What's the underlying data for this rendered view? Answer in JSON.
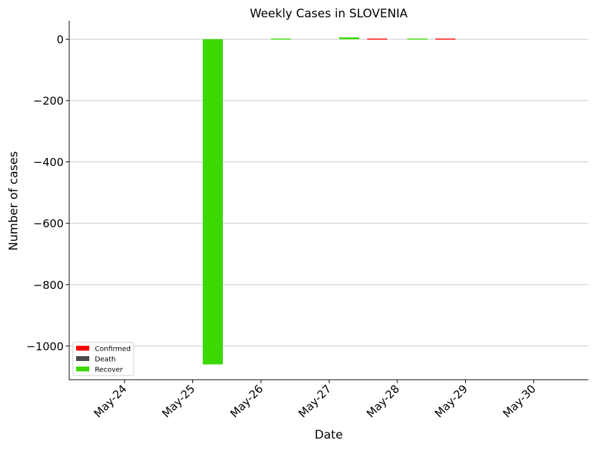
{
  "chart_data": {
    "type": "bar",
    "title": "Weekly Cases in SLOVENIA",
    "xlabel": "Date",
    "ylabel": "Number of cases",
    "categories": [
      "May-24",
      "May-25",
      "May-26",
      "May-27",
      "May-28",
      "May-29",
      "May-30"
    ],
    "series": [
      {
        "name": "Confirmed",
        "color": "#ff0000",
        "values": [
          0,
          0,
          0,
          0,
          2,
          2,
          0
        ]
      },
      {
        "name": "Death",
        "color": "#4a4a4a",
        "values": [
          0,
          0,
          0,
          0,
          0,
          0,
          0
        ]
      },
      {
        "name": "Recover",
        "color": "#3cd900",
        "values": [
          0,
          -1060,
          2,
          6,
          2,
          0,
          0
        ]
      }
    ],
    "yticks": [
      0,
      -200,
      -400,
      -600,
      -800,
      -1000
    ],
    "ytick_labels": [
      "0",
      "−200",
      "−400",
      "−600",
      "−800",
      "−1000"
    ],
    "ylim": [
      -1110,
      60
    ],
    "grid": "y",
    "legend_position": "lower-left"
  }
}
